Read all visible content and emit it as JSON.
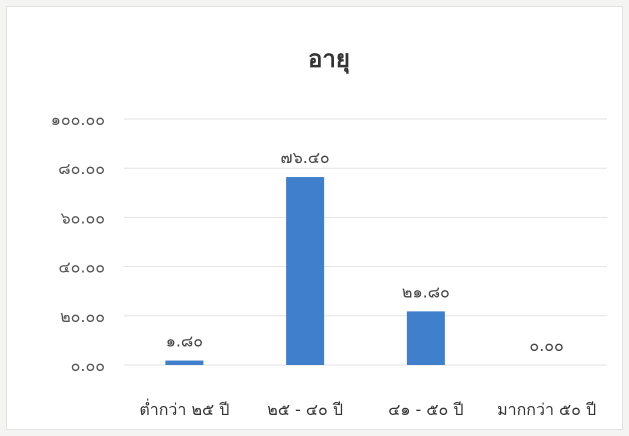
{
  "chart_data": {
    "type": "bar",
    "title": "อายุ",
    "categories": [
      "ต่ำกว่า ๒๕ ปี",
      "๒๕ - ๔๐ ปี",
      "๔๑ - ๕๐ ปี",
      "มากกว่า ๕๐ ปี"
    ],
    "values": [
      1.8,
      76.4,
      21.8,
      0.0
    ],
    "data_labels": [
      "๑.๘๐",
      "๗๖.๔๐",
      "๒๑.๘๐",
      "๐.๐๐"
    ],
    "ylim": [
      0,
      100
    ],
    "yticks": [
      0,
      20,
      40,
      60,
      80,
      100
    ],
    "ytick_labels": [
      "๐.๐๐",
      "๒๐.๐๐",
      "๔๐.๐๐",
      "๖๐.๐๐",
      "๘๐.๐๐",
      "๑๐๐.๐๐"
    ],
    "xlabel": "",
    "ylabel": "",
    "grid": true,
    "bar_color": "#3f7fcb",
    "grid_color": "#e3e3e3"
  }
}
